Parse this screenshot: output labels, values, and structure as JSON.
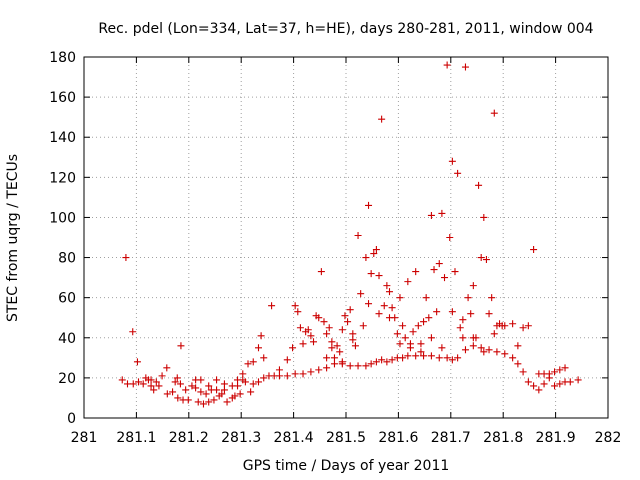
{
  "chart_data": {
    "type": "scatter",
    "title": "Rec. pdel (Lon=334, Lat=37, h=HE), days 280-281, 2011, window 004",
    "xlabel": "GPS time / Days of year 2011",
    "ylabel": "STEC from uqrg / TECUs",
    "xlim": [
      281,
      282
    ],
    "ylim": [
      0,
      180
    ],
    "x_ticks": [
      "281",
      "281.1",
      "281.2",
      "281.3",
      "281.4",
      "281.5",
      "281.6",
      "281.7",
      "281.8",
      "281.9",
      "282"
    ],
    "y_ticks": [
      "0",
      "20",
      "40",
      "60",
      "80",
      "100",
      "120",
      "140",
      "160",
      "180"
    ],
    "grid": true,
    "marker": "plus",
    "color": "#cc0000",
    "points": [
      [
        281.073,
        19
      ],
      [
        281.083,
        17
      ],
      [
        281.094,
        17
      ],
      [
        281.104,
        18
      ],
      [
        281.113,
        17
      ],
      [
        281.118,
        20
      ],
      [
        281.123,
        19
      ],
      [
        281.128,
        16
      ],
      [
        281.133,
        14
      ],
      [
        281.138,
        18
      ],
      [
        281.143,
        16
      ],
      [
        281.149,
        21
      ],
      [
        281.159,
        12
      ],
      [
        281.169,
        13
      ],
      [
        281.174,
        18
      ],
      [
        281.179,
        10
      ],
      [
        281.184,
        17
      ],
      [
        281.189,
        9
      ],
      [
        281.194,
        14
      ],
      [
        281.199,
        9
      ],
      [
        281.206,
        16
      ],
      [
        281.213,
        15
      ],
      [
        281.218,
        8
      ],
      [
        281.223,
        13
      ],
      [
        281.228,
        7
      ],
      [
        281.233,
        12
      ],
      [
        281.238,
        8
      ],
      [
        281.243,
        14
      ],
      [
        281.248,
        9
      ],
      [
        281.253,
        14
      ],
      [
        281.258,
        11
      ],
      [
        281.263,
        12
      ],
      [
        281.268,
        14
      ],
      [
        281.273,
        8
      ],
      [
        281.283,
        10
      ],
      [
        281.288,
        11
      ],
      [
        281.293,
        16
      ],
      [
        281.298,
        12
      ],
      [
        281.303,
        19
      ],
      [
        281.308,
        18
      ],
      [
        281.318,
        13
      ],
      [
        281.323,
        17
      ],
      [
        281.333,
        18
      ],
      [
        281.343,
        20
      ],
      [
        281.353,
        21
      ],
      [
        281.363,
        21
      ],
      [
        281.373,
        21
      ],
      [
        281.388,
        21
      ],
      [
        281.403,
        22
      ],
      [
        281.418,
        22
      ],
      [
        281.433,
        23
      ],
      [
        281.448,
        24
      ],
      [
        281.463,
        25
      ],
      [
        281.478,
        27
      ],
      [
        281.493,
        27
      ],
      [
        281.508,
        26
      ],
      [
        281.523,
        26
      ],
      [
        281.538,
        26
      ],
      [
        281.548,
        27
      ],
      [
        281.558,
        28
      ],
      [
        281.568,
        29
      ],
      [
        281.578,
        28
      ],
      [
        281.588,
        29
      ],
      [
        281.598,
        30
      ],
      [
        281.608,
        30
      ],
      [
        281.618,
        31
      ],
      [
        281.633,
        31
      ],
      [
        281.648,
        31
      ],
      [
        281.663,
        31
      ],
      [
        281.678,
        30
      ],
      [
        281.693,
        30
      ],
      [
        281.703,
        29
      ],
      [
        281.713,
        30
      ],
      [
        281.728,
        34
      ],
      [
        281.743,
        36
      ],
      [
        281.758,
        35
      ],
      [
        281.773,
        34
      ],
      [
        281.788,
        33
      ],
      [
        281.803,
        32
      ],
      [
        281.818,
        30
      ],
      [
        281.828,
        27
      ],
      [
        281.838,
        23
      ],
      [
        281.848,
        18
      ],
      [
        281.858,
        16
      ],
      [
        281.868,
        14
      ],
      [
        281.878,
        17
      ],
      [
        281.888,
        20
      ],
      [
        281.898,
        16
      ],
      [
        281.908,
        17
      ],
      [
        281.918,
        18
      ],
      [
        281.928,
        18
      ],
      [
        281.943,
        19
      ],
      [
        281.08,
        80
      ],
      [
        281.102,
        28
      ],
      [
        281.128,
        19
      ],
      [
        281.158,
        25
      ],
      [
        281.178,
        20
      ],
      [
        281.185,
        36
      ],
      [
        281.213,
        19
      ],
      [
        281.223,
        19
      ],
      [
        281.238,
        16
      ],
      [
        281.253,
        19
      ],
      [
        281.268,
        17
      ],
      [
        281.283,
        16
      ],
      [
        281.293,
        19
      ],
      [
        281.303,
        22
      ],
      [
        281.313,
        27
      ],
      [
        281.323,
        28
      ],
      [
        281.333,
        35
      ],
      [
        281.338,
        41
      ],
      [
        281.343,
        30
      ],
      [
        281.358,
        56
      ],
      [
        281.373,
        24
      ],
      [
        281.388,
        29
      ],
      [
        281.398,
        35
      ],
      [
        281.403,
        56
      ],
      [
        281.408,
        53
      ],
      [
        281.413,
        45
      ],
      [
        281.418,
        37
      ],
      [
        281.423,
        43
      ],
      [
        281.428,
        44
      ],
      [
        281.433,
        41
      ],
      [
        281.438,
        38
      ],
      [
        281.443,
        51
      ],
      [
        281.448,
        50
      ],
      [
        281.453,
        73
      ],
      [
        281.458,
        48
      ],
      [
        281.463,
        30
      ],
      [
        281.468,
        45
      ],
      [
        281.473,
        35
      ],
      [
        281.478,
        30
      ],
      [
        281.483,
        36
      ],
      [
        281.488,
        33
      ],
      [
        281.493,
        28
      ],
      [
        281.498,
        51
      ],
      [
        281.503,
        48
      ],
      [
        281.508,
        54
      ],
      [
        281.513,
        42
      ],
      [
        281.518,
        36
      ],
      [
        281.523,
        91
      ],
      [
        281.528,
        62
      ],
      [
        281.533,
        46
      ],
      [
        281.538,
        80
      ],
      [
        281.543,
        106
      ],
      [
        281.548,
        72
      ],
      [
        281.553,
        82
      ],
      [
        281.558,
        84
      ],
      [
        281.563,
        71
      ],
      [
        281.568,
        149
      ],
      [
        281.573,
        56
      ],
      [
        281.578,
        66
      ],
      [
        281.583,
        63
      ],
      [
        281.588,
        55
      ],
      [
        281.593,
        50
      ],
      [
        281.598,
        42
      ],
      [
        281.603,
        60
      ],
      [
        281.608,
        46
      ],
      [
        281.613,
        40
      ],
      [
        281.618,
        68
      ],
      [
        281.623,
        37
      ],
      [
        281.628,
        43
      ],
      [
        281.633,
        73
      ],
      [
        281.638,
        46
      ],
      [
        281.643,
        33
      ],
      [
        281.648,
        48
      ],
      [
        281.653,
        60
      ],
      [
        281.658,
        50
      ],
      [
        281.663,
        101
      ],
      [
        281.668,
        74
      ],
      [
        281.673,
        53
      ],
      [
        281.678,
        77
      ],
      [
        281.683,
        102
      ],
      [
        281.688,
        70
      ],
      [
        281.693,
        176
      ],
      [
        281.698,
        90
      ],
      [
        281.703,
        128
      ],
      [
        281.708,
        73
      ],
      [
        281.713,
        122
      ],
      [
        281.718,
        45
      ],
      [
        281.723,
        40
      ],
      [
        281.728,
        175
      ],
      [
        281.733,
        60
      ],
      [
        281.738,
        52
      ],
      [
        281.743,
        66
      ],
      [
        281.748,
        40
      ],
      [
        281.753,
        116
      ],
      [
        281.758,
        80
      ],
      [
        281.763,
        100
      ],
      [
        281.768,
        79
      ],
      [
        281.773,
        52
      ],
      [
        281.778,
        60
      ],
      [
        281.783,
        152
      ],
      [
        281.788,
        46
      ],
      [
        281.793,
        47
      ],
      [
        281.798,
        46
      ],
      [
        281.803,
        46
      ],
      [
        281.818,
        47
      ],
      [
        281.828,
        36
      ],
      [
        281.838,
        45
      ],
      [
        281.848,
        46
      ],
      [
        281.858,
        84
      ],
      [
        281.868,
        22
      ],
      [
        281.878,
        22
      ],
      [
        281.888,
        22
      ],
      [
        281.898,
        23
      ],
      [
        281.908,
        24
      ],
      [
        281.918,
        25
      ],
      [
        281.093,
        43
      ],
      [
        281.463,
        42
      ],
      [
        281.473,
        38
      ],
      [
        281.493,
        44
      ],
      [
        281.513,
        39
      ],
      [
        281.543,
        57
      ],
      [
        281.563,
        52
      ],
      [
        281.583,
        50
      ],
      [
        281.603,
        37
      ],
      [
        281.623,
        35
      ],
      [
        281.643,
        37
      ],
      [
        281.663,
        40
      ],
      [
        281.683,
        35
      ],
      [
        281.703,
        53
      ],
      [
        281.723,
        49
      ],
      [
        281.743,
        40
      ],
      [
        281.763,
        33
      ],
      [
        281.783,
        42
      ]
    ]
  }
}
